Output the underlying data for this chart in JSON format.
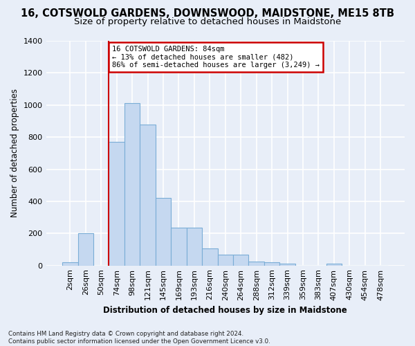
{
  "title": "16, COTSWOLD GARDENS, DOWNSWOOD, MAIDSTONE, ME15 8TB",
  "subtitle": "Size of property relative to detached houses in Maidstone",
  "xlabel": "Distribution of detached houses by size in Maidstone",
  "ylabel": "Number of detached properties",
  "categories": [
    "2sqm",
    "26sqm",
    "50sqm",
    "74sqm",
    "98sqm",
    "121sqm",
    "145sqm",
    "169sqm",
    "193sqm",
    "216sqm",
    "240sqm",
    "264sqm",
    "288sqm",
    "312sqm",
    "339sqm",
    "359sqm",
    "383sqm",
    "407sqm",
    "430sqm",
    "454sqm",
    "478sqm"
  ],
  "values": [
    20,
    200,
    0,
    770,
    1010,
    880,
    420,
    235,
    235,
    108,
    68,
    68,
    25,
    22,
    10,
    0,
    0,
    10,
    0,
    0,
    0
  ],
  "bar_color": "#c5d8f0",
  "bar_edge_color": "#7aadd6",
  "vline_index": 3,
  "annotation_text": "16 COTSWOLD GARDENS: 84sqm\n← 13% of detached houses are smaller (482)\n86% of semi-detached houses are larger (3,249) →",
  "annotation_box_color": "#ffffff",
  "annotation_box_edge": "#cc0000",
  "vline_color": "#cc0000",
  "ylim": [
    0,
    1400
  ],
  "yticks": [
    0,
    200,
    400,
    600,
    800,
    1000,
    1200,
    1400
  ],
  "background_color": "#e8eef8",
  "grid_color": "#ffffff",
  "footer": "Contains HM Land Registry data © Crown copyright and database right 2024.\nContains public sector information licensed under the Open Government Licence v3.0.",
  "title_fontsize": 10.5,
  "subtitle_fontsize": 9.5,
  "xlabel_fontsize": 8.5,
  "ylabel_fontsize": 8.5,
  "tick_fontsize": 8,
  "annotation_fontsize": 7.5
}
